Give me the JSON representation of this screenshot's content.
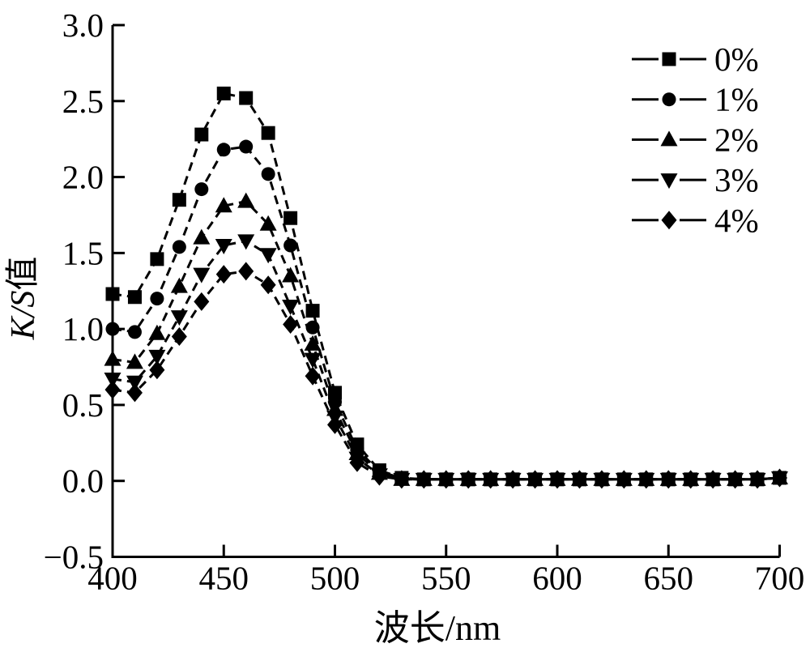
{
  "chart_data": {
    "type": "line",
    "title": "",
    "xlabel": "波长/nm",
    "ylabel": "K/S值",
    "ylabel_italic_part": "K/S",
    "ylabel_cjk_part": "值",
    "xlim": [
      400,
      700
    ],
    "ylim": [
      -0.5,
      3.0
    ],
    "xticks": [
      400,
      450,
      500,
      550,
      600,
      650,
      700
    ],
    "yticks": [
      -0.5,
      0.0,
      0.5,
      1.0,
      1.5,
      2.0,
      2.5,
      3.0
    ],
    "grid": false,
    "legend_position": "upper-right-inside",
    "legend_border": false,
    "line_color": "#000000",
    "marker_color": "#000000",
    "background_color": "#ffffff",
    "x": [
      400,
      410,
      420,
      430,
      440,
      450,
      460,
      470,
      480,
      490,
      500,
      510,
      520,
      530,
      540,
      550,
      560,
      570,
      580,
      590,
      600,
      610,
      620,
      630,
      640,
      650,
      660,
      670,
      680,
      690,
      700
    ],
    "series": [
      {
        "name": "0%",
        "marker": "square",
        "values": [
          1.23,
          1.21,
          1.46,
          1.85,
          2.28,
          2.55,
          2.52,
          2.29,
          1.73,
          1.12,
          0.58,
          0.24,
          0.07,
          0.02,
          0.01,
          0.01,
          0.01,
          0.01,
          0.01,
          0.01,
          0.01,
          0.01,
          0.01,
          0.01,
          0.01,
          0.01,
          0.01,
          0.01,
          0.01,
          0.01,
          0.02
        ]
      },
      {
        "name": "1%",
        "marker": "circle",
        "values": [
          1.0,
          0.98,
          1.2,
          1.54,
          1.92,
          2.18,
          2.2,
          2.02,
          1.55,
          1.01,
          0.52,
          0.21,
          0.06,
          0.02,
          0.01,
          0.01,
          0.01,
          0.01,
          0.01,
          0.01,
          0.01,
          0.01,
          0.01,
          0.01,
          0.01,
          0.01,
          0.01,
          0.01,
          0.01,
          0.01,
          0.02
        ]
      },
      {
        "name": "2%",
        "marker": "triangle-up",
        "values": [
          0.8,
          0.78,
          0.97,
          1.28,
          1.6,
          1.81,
          1.84,
          1.69,
          1.35,
          0.9,
          0.47,
          0.18,
          0.05,
          0.01,
          0.01,
          0.01,
          0.01,
          0.01,
          0.01,
          0.01,
          0.01,
          0.01,
          0.01,
          0.01,
          0.01,
          0.01,
          0.01,
          0.01,
          0.01,
          0.01,
          0.02
        ]
      },
      {
        "name": "3%",
        "marker": "triangle-down",
        "values": [
          0.67,
          0.65,
          0.82,
          1.08,
          1.36,
          1.55,
          1.58,
          1.49,
          1.15,
          0.8,
          0.42,
          0.15,
          0.04,
          0.01,
          0.01,
          0.01,
          0.01,
          0.01,
          0.01,
          0.01,
          0.01,
          0.01,
          0.01,
          0.01,
          0.01,
          0.01,
          0.01,
          0.01,
          0.01,
          0.01,
          0.02
        ]
      },
      {
        "name": "4%",
        "marker": "diamond",
        "values": [
          0.6,
          0.58,
          0.73,
          0.95,
          1.18,
          1.36,
          1.38,
          1.29,
          1.03,
          0.69,
          0.37,
          0.12,
          0.03,
          0.01,
          0.01,
          0.01,
          0.01,
          0.01,
          0.01,
          0.01,
          0.01,
          0.01,
          0.01,
          0.01,
          0.01,
          0.01,
          0.01,
          0.01,
          0.01,
          0.01,
          0.02
        ]
      }
    ]
  }
}
